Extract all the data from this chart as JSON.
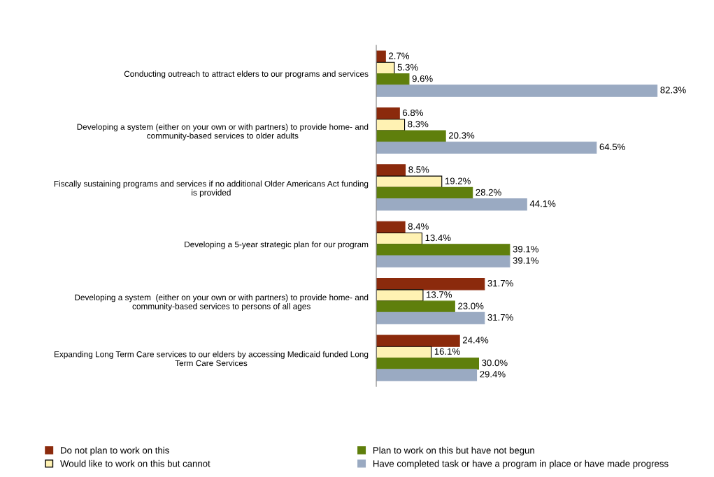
{
  "chart_data": {
    "type": "bar",
    "orientation": "horizontal",
    "legend": "bottom",
    "grid": false,
    "tick_labels": "y",
    "categories": [
      "Conducting outreach to attract elders to our programs and services",
      "Developing a system (either on your own or with partners) to provide home- and\ncommunity-based services to older adults",
      "Fiscally sustaining programs and services if no additional Older Americans Act funding\nis provided",
      "Developing a 5-year strategic plan for our program",
      "Developing a system  (either on your own or with partners) to provide home- and\ncommunity-based services to persons of all ages",
      "Expanding Long Term Care services to our elders by accessing Medicaid funded Long\nTerm Care Services"
    ],
    "series": [
      {
        "name": "Do not plan to work on this",
        "color": "#8b2a0c",
        "values": [
          2.7,
          6.8,
          8.5,
          8.4,
          31.7,
          24.4
        ],
        "value_labels": [
          "2.7%",
          "6.8%",
          "8.5%",
          "8.4%",
          "31.7%",
          "24.4%"
        ]
      },
      {
        "name": "Would like to work on this but cannot",
        "color": "#fff2b3",
        "values": [
          5.3,
          8.3,
          19.2,
          13.4,
          13.7,
          16.1
        ],
        "value_labels": [
          "5.3%",
          "8.3%",
          "19.2%",
          "13.4%",
          "13.7%",
          "16.1%"
        ]
      },
      {
        "name": "Plan to work on this but have not begun",
        "color": "#5f7f0c",
        "values": [
          9.6,
          20.3,
          28.2,
          39.1,
          23.0,
          30.0
        ],
        "value_labels": [
          "9.6%",
          "20.3%",
          "28.2%",
          "39.1%",
          "23.0%",
          "30.0%"
        ]
      },
      {
        "name": "Have completed task or have a program in place or have made progress",
        "color": "#9aaac2",
        "values": [
          82.3,
          64.5,
          44.1,
          39.1,
          31.7,
          29.4
        ],
        "value_labels": [
          "82.3%",
          "64.5%",
          "44.1%",
          "39.1%",
          "31.7%",
          "29.4%"
        ]
      }
    ]
  }
}
